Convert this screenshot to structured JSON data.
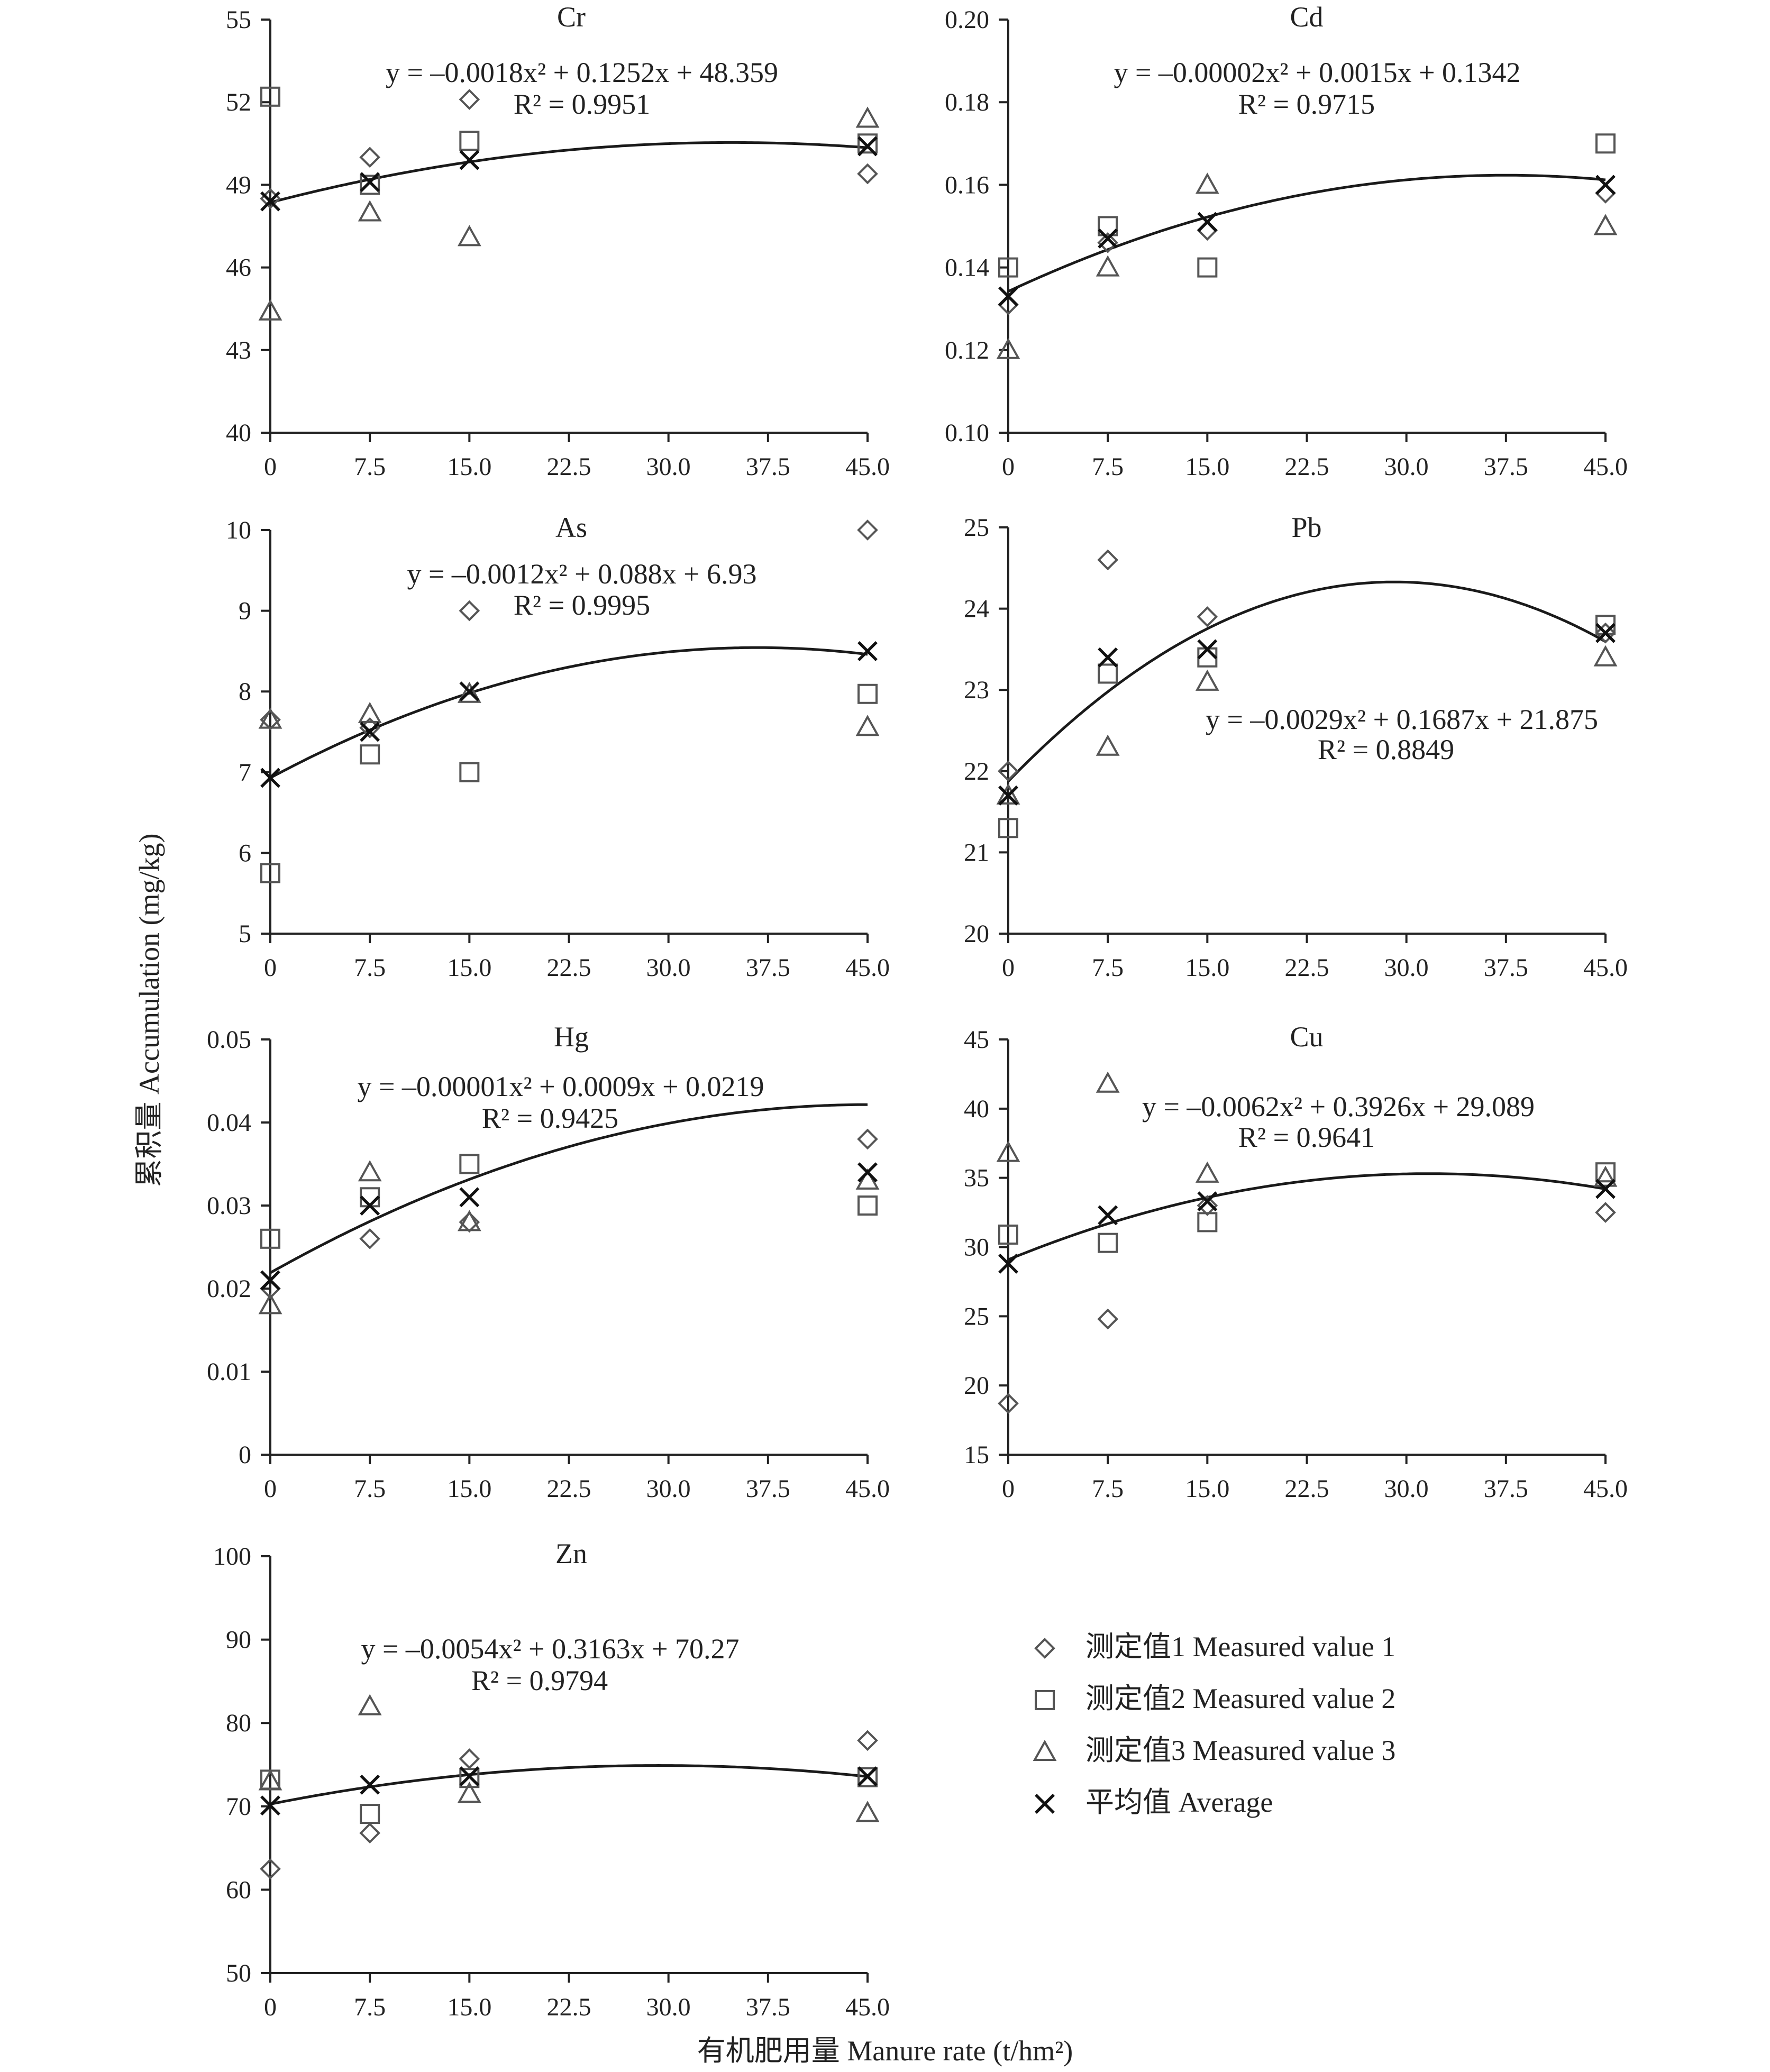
{
  "figure": {
    "y_axis_title": "累积量 Accumulation (mg/kg)",
    "x_axis_title": "有机肥用量 Manure rate (t/hm²)"
  },
  "legend": {
    "items": [
      {
        "label": "测定值1 Measured value 1",
        "marker": "diamond"
      },
      {
        "label": "测定值2 Measured value 2",
        "marker": "square"
      },
      {
        "label": "测定值3 Measured value 3",
        "marker": "triangle"
      },
      {
        "label": "平均值 Average",
        "marker": "cross"
      }
    ]
  },
  "chart_data": [
    {
      "type": "scatter",
      "title": "Cr",
      "x": [
        0,
        7.5,
        15,
        45
      ],
      "xticks": [
        "0",
        "7.5",
        "15.0",
        "22.5",
        "30.0",
        "37.5",
        "45.0"
      ],
      "yticks": [
        "40",
        "43",
        "46",
        "49",
        "52",
        "55"
      ],
      "ylim": [
        40,
        55
      ],
      "series": [
        {
          "name": "测定值1 Measured value 1",
          "values": [
            48.5,
            50.0,
            52.1,
            49.4
          ]
        },
        {
          "name": "测定值2 Measured value 2",
          "values": [
            52.2,
            49.0,
            50.6,
            50.5
          ]
        },
        {
          "name": "测定值3 Measured value 3",
          "values": [
            44.4,
            48.0,
            47.1,
            51.4
          ]
        },
        {
          "name": "平均值 Average",
          "values": [
            48.4,
            49.1,
            49.9,
            50.4
          ]
        }
      ],
      "fit": {
        "a": -0.0018,
        "b": 0.1252,
        "c": 48.359,
        "equation": "y = –0.0018x² + 0.1252x + 48.359",
        "r2": "R² = 0.9951"
      }
    },
    {
      "type": "scatter",
      "title": "Cd",
      "x": [
        0,
        7.5,
        15,
        45
      ],
      "xticks": [
        "0",
        "7.5",
        "15.0",
        "22.5",
        "30.0",
        "37.5",
        "45.0"
      ],
      "yticks": [
        "0.10",
        "0.12",
        "0.14",
        "0.16",
        "0.18",
        "0.20"
      ],
      "ylim": [
        0.1,
        0.2
      ],
      "series": [
        {
          "name": "测定值1 Measured value 1",
          "values": [
            0.131,
            0.146,
            0.149,
            0.158
          ]
        },
        {
          "name": "测定值2 Measured value 2",
          "values": [
            0.14,
            0.15,
            0.14,
            0.17
          ]
        },
        {
          "name": "测定值3 Measured value 3",
          "values": [
            0.12,
            0.14,
            0.16,
            0.15
          ]
        },
        {
          "name": "平均值 Average",
          "values": [
            0.133,
            0.147,
            0.151,
            0.16
          ]
        }
      ],
      "fit": {
        "a": -2e-05,
        "b": 0.0015,
        "c": 0.1342,
        "equation": "y = –0.00002x² + 0.0015x + 0.1342",
        "r2": "R² = 0.9715"
      }
    },
    {
      "type": "scatter",
      "title": "As",
      "x": [
        0,
        7.5,
        15,
        45
      ],
      "xticks": [
        "0",
        "7.5",
        "15.0",
        "22.5",
        "30.0",
        "37.5",
        "45.0"
      ],
      "yticks": [
        "5",
        "6",
        "7",
        "8",
        "9",
        "10"
      ],
      "ylim": [
        5,
        10
      ],
      "series": [
        {
          "name": "测定值1 Measured value 1",
          "values": [
            7.65,
            7.55,
            9.0,
            10.0
          ]
        },
        {
          "name": "测定值2 Measured value 2",
          "values": [
            5.75,
            7.22,
            7.0,
            7.97
          ]
        },
        {
          "name": "测定值3 Measured value 3",
          "values": [
            7.65,
            7.72,
            7.97,
            7.56
          ]
        },
        {
          "name": "平均值 Average",
          "values": [
            6.93,
            7.5,
            8.0,
            8.5
          ]
        }
      ],
      "fit": {
        "a": -0.0012,
        "b": 0.088,
        "c": 6.93,
        "equation": "y = –0.0012x² + 0.088x + 6.93",
        "r2": "R² = 0.9995"
      }
    },
    {
      "type": "scatter",
      "title": "Pb",
      "x": [
        0,
        7.5,
        15,
        45
      ],
      "xticks": [
        "0",
        "7.5",
        "15.0",
        "22.5",
        "30.0",
        "37.5",
        "45.0"
      ],
      "yticks": [
        "20",
        "21",
        "22",
        "23",
        "24",
        "25"
      ],
      "ylim": [
        20,
        25
      ],
      "series": [
        {
          "name": "测定值1 Measured value 1",
          "values": [
            22.0,
            24.6,
            23.9,
            23.7
          ]
        },
        {
          "name": "测定值2 Measured value 2",
          "values": [
            21.3,
            23.2,
            23.4,
            23.8
          ]
        },
        {
          "name": "测定值3 Measured value 3",
          "values": [
            21.7,
            22.3,
            23.1,
            23.4
          ]
        },
        {
          "name": "平均值 Average",
          "values": [
            21.7,
            23.4,
            23.5,
            23.7
          ]
        }
      ],
      "fit": {
        "a": -0.0029,
        "b": 0.1687,
        "c": 21.875,
        "equation": "y = –0.0029x² + 0.1687x + 21.875",
        "r2": "R² = 0.8849"
      }
    },
    {
      "type": "scatter",
      "title": "Hg",
      "x": [
        0,
        7.5,
        15,
        45
      ],
      "xticks": [
        "0",
        "7.5",
        "15.0",
        "22.5",
        "30.0",
        "37.5",
        "45.0"
      ],
      "yticks": [
        "0",
        "0.01",
        "0.02",
        "0.03",
        "0.04",
        "0.05"
      ],
      "ylim": [
        0,
        0.05
      ],
      "series": [
        {
          "name": "测定值1 Measured value 1",
          "values": [
            0.02,
            0.026,
            0.028,
            0.038
          ]
        },
        {
          "name": "测定值2 Measured value 2",
          "values": [
            0.026,
            0.031,
            0.035,
            0.03
          ]
        },
        {
          "name": "测定值3 Measured value 3",
          "values": [
            0.018,
            0.034,
            0.028,
            0.033
          ]
        },
        {
          "name": "平均值 Average",
          "values": [
            0.021,
            0.03,
            0.031,
            0.034
          ]
        }
      ],
      "fit": {
        "a": -1e-05,
        "b": 0.0009,
        "c": 0.0219,
        "equation": "y = –0.00001x² + 0.0009x + 0.0219",
        "r2": "R² = 0.9425"
      }
    },
    {
      "type": "scatter",
      "title": "Cu",
      "x": [
        0,
        7.5,
        15,
        45
      ],
      "xticks": [
        "0",
        "7.5",
        "15.0",
        "22.5",
        "30.0",
        "37.5",
        "45.0"
      ],
      "yticks": [
        "15",
        "20",
        "25",
        "30",
        "35",
        "40",
        "45"
      ],
      "ylim": [
        15,
        45
      ],
      "series": [
        {
          "name": "测定值1 Measured value 1",
          "values": [
            18.7,
            24.8,
            33.0,
            32.5
          ]
        },
        {
          "name": "测定值2 Measured value 2",
          "values": [
            30.9,
            30.3,
            31.8,
            35.4
          ]
        },
        {
          "name": "测定值3 Measured value 3",
          "values": [
            36.8,
            41.8,
            35.3,
            35.0
          ]
        },
        {
          "name": "平均值 Average",
          "values": [
            28.8,
            32.3,
            33.3,
            34.2
          ]
        }
      ],
      "fit": {
        "a": -0.0062,
        "b": 0.3926,
        "c": 29.089,
        "equation": "y = –0.0062x² + 0.3926x + 29.089",
        "r2": "R² = 0.9641"
      }
    },
    {
      "type": "scatter",
      "title": "Zn",
      "x": [
        0,
        7.5,
        15,
        45
      ],
      "xticks": [
        "0",
        "7.5",
        "15.0",
        "22.5",
        "30.0",
        "37.5",
        "45.0"
      ],
      "yticks": [
        "50",
        "60",
        "70",
        "80",
        "90",
        "100"
      ],
      "ylim": [
        50,
        100
      ],
      "series": [
        {
          "name": "测定值1 Measured value 1",
          "values": [
            62.5,
            66.8,
            75.7,
            77.9
          ]
        },
        {
          "name": "测定值2 Measured value 2",
          "values": [
            73.2,
            69.1,
            73.4,
            73.5
          ]
        },
        {
          "name": "测定值3 Measured value 3",
          "values": [
            73.0,
            82.0,
            71.5,
            69.2
          ]
        },
        {
          "name": "平均值 Average",
          "values": [
            70.1,
            72.6,
            73.6,
            73.6
          ]
        }
      ],
      "fit": {
        "a": -0.0054,
        "b": 0.3163,
        "c": 70.27,
        "equation": "y = –0.0054x² + 0.3163x + 70.27",
        "r2": "R² = 0.9794"
      }
    }
  ]
}
